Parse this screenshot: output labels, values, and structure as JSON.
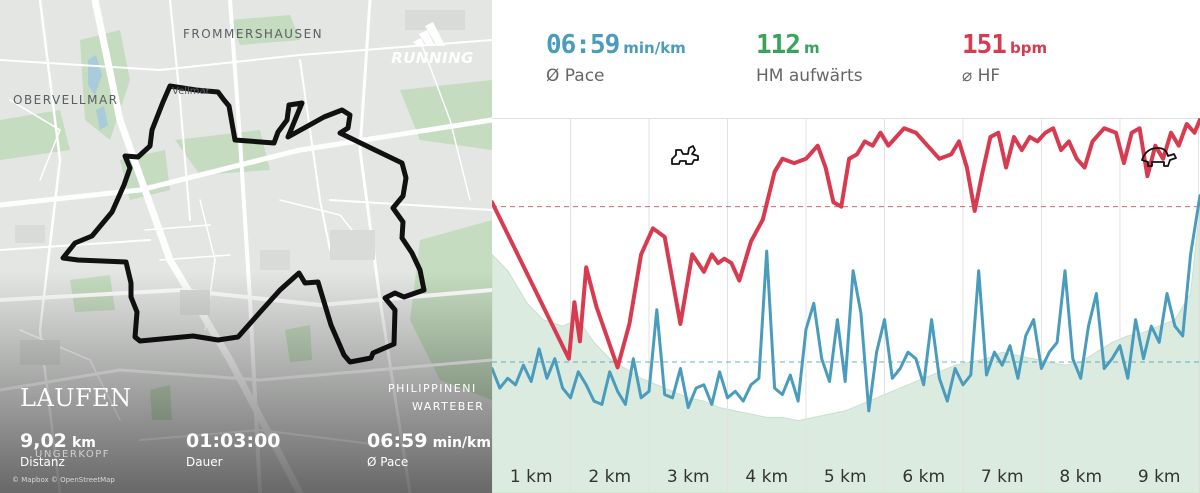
{
  "map": {
    "places": {
      "frommershausen": "FROMMERSHAUSEN",
      "obervellmar": "OBERVELLMAR",
      "vellmar": "Vellmar",
      "philippinen": "PHILIPPINENI",
      "warteberg": "WARTEBER",
      "ungerkopf": "UNGERKOPF"
    },
    "brand": {
      "icon": "adidas-logo-icon",
      "text": "RUNNING"
    },
    "activity_title": "LAUFEN",
    "stats": [
      {
        "value": "9,02",
        "unit": "km",
        "label": "Distanz"
      },
      {
        "value": "01:03:00",
        "unit": "",
        "label": "Dauer"
      },
      {
        "value": "06:59",
        "unit": "min/km",
        "label": "Ø Pace"
      }
    ],
    "attribution": "© Mapbox © OpenStreetMap",
    "route_color": "#111111"
  },
  "summary": [
    {
      "value": "06:59",
      "unit": "min/km",
      "label": "Ø Pace",
      "color": "#4a9cbd"
    },
    {
      "value": "112",
      "unit": "m",
      "label": "HM aufwärts",
      "color": "#3aa35a"
    },
    {
      "value": "151",
      "unit": "bpm",
      "label": "⌀ HF",
      "color": "#d83a4f"
    }
  ],
  "chart_data": {
    "type": "line",
    "x_unit": "km",
    "xlim": [
      0,
      9.02
    ],
    "x_tick_labels": [
      "1 km",
      "2 km",
      "3 km",
      "4 km",
      "5 km",
      "6 km",
      "7 km",
      "8 km",
      "9 km"
    ],
    "x_ticks": [
      1,
      2,
      3,
      4,
      5,
      6,
      7,
      8,
      9
    ],
    "icons": {
      "fast": "rabbit-icon",
      "slow": "turtle-icon"
    },
    "series": [
      {
        "key": "heart_rate",
        "color": "#d83a4f",
        "ylim": [
          95,
          170
        ],
        "average": 151,
        "x": [
          0,
          0.98,
          1.05,
          1.12,
          1.2,
          1.33,
          1.6,
          1.75,
          1.9,
          2.05,
          2.2,
          2.4,
          2.55,
          2.7,
          2.8,
          2.88,
          2.96,
          3.05,
          3.15,
          3.3,
          3.45,
          3.6,
          3.7,
          3.85,
          4.0,
          4.15,
          4.25,
          4.35,
          4.45,
          4.55,
          4.65,
          4.75,
          4.85,
          4.95,
          5.05,
          5.15,
          5.25,
          5.4,
          5.55,
          5.7,
          5.85,
          5.95,
          6.05,
          6.15,
          6.25,
          6.35,
          6.45,
          6.55,
          6.65,
          6.75,
          6.85,
          6.95,
          7.05,
          7.15,
          7.25,
          7.35,
          7.45,
          7.55,
          7.65,
          7.8,
          7.95,
          8.05,
          8.15,
          8.25,
          8.35,
          8.45,
          8.55,
          8.65,
          8.75,
          8.85,
          8.95,
          9.02
        ],
        "y": [
          152,
          116,
          129,
          120,
          137,
          128,
          114,
          124,
          140,
          146,
          144,
          124,
          140,
          136,
          140,
          138,
          139,
          138,
          134,
          143,
          148,
          159,
          162,
          161,
          162,
          165,
          160,
          152,
          151,
          162,
          163,
          166,
          165,
          168,
          165,
          167,
          169,
          168,
          165,
          162,
          163,
          166,
          160,
          150,
          159,
          167,
          168,
          160,
          167,
          164,
          167,
          166,
          168,
          169,
          164,
          166,
          162,
          160,
          166,
          169,
          168,
          161,
          168,
          169,
          158,
          165,
          162,
          168,
          165,
          170,
          168,
          171
        ]
      },
      {
        "key": "pace",
        "color": "#4a9cbd",
        "ylim": [
          0,
          100
        ],
        "average": 27,
        "x": [
          0,
          0.1,
          0.2,
          0.3,
          0.4,
          0.5,
          0.6,
          0.7,
          0.8,
          0.9,
          1.0,
          1.1,
          1.2,
          1.3,
          1.4,
          1.5,
          1.6,
          1.7,
          1.8,
          1.9,
          2.0,
          2.1,
          2.2,
          2.3,
          2.4,
          2.5,
          2.6,
          2.7,
          2.8,
          2.9,
          3.0,
          3.1,
          3.2,
          3.3,
          3.4,
          3.5,
          3.6,
          3.7,
          3.8,
          3.9,
          4.0,
          4.1,
          4.2,
          4.3,
          4.4,
          4.5,
          4.6,
          4.7,
          4.8,
          4.9,
          5.0,
          5.1,
          5.2,
          5.3,
          5.4,
          5.5,
          5.6,
          5.7,
          5.8,
          5.9,
          6.0,
          6.1,
          6.2,
          6.3,
          6.4,
          6.5,
          6.6,
          6.7,
          6.8,
          6.9,
          7.0,
          7.1,
          7.2,
          7.3,
          7.4,
          7.5,
          7.6,
          7.7,
          7.8,
          7.9,
          8.0,
          8.1,
          8.2,
          8.3,
          8.4,
          8.5,
          8.6,
          8.7,
          8.8,
          8.9,
          9.02
        ],
        "y": [
          25,
          19,
          22,
          20,
          26,
          21,
          31,
          22,
          28,
          19,
          16,
          24,
          20,
          15,
          14,
          24,
          18,
          14,
          28,
          16,
          18,
          43,
          17,
          16,
          25,
          13,
          19,
          20,
          14,
          24,
          16,
          18,
          15,
          20,
          22,
          61,
          19,
          17,
          23,
          15,
          37,
          45,
          28,
          21,
          40,
          21,
          55,
          42,
          12,
          30,
          40,
          22,
          25,
          30,
          28,
          20,
          40,
          22,
          15,
          25,
          20,
          23,
          55,
          23,
          30,
          26,
          32,
          22,
          35,
          40,
          25,
          30,
          33,
          55,
          28,
          22,
          38,
          48,
          25,
          28,
          32,
          22,
          40,
          28,
          38,
          33,
          48,
          38,
          35,
          60,
          78
        ]
      },
      {
        "key": "elevation",
        "color": "#dcebdf",
        "ylim": [
          0,
          100
        ],
        "x": [
          0,
          0.2,
          0.45,
          0.65,
          0.9,
          1.1,
          1.3,
          1.5,
          1.7,
          1.9,
          2.1,
          2.3,
          2.5,
          2.7,
          2.9,
          3.1,
          3.3,
          3.5,
          3.7,
          3.9,
          4.1,
          4.3,
          4.5,
          4.7,
          4.9,
          5.1,
          5.3,
          5.5,
          5.7,
          5.9,
          6.1,
          6.3,
          6.5,
          6.7,
          6.9,
          7.1,
          7.3,
          7.5,
          7.7,
          7.9,
          8.1,
          8.3,
          8.5,
          8.7,
          8.9,
          9.02
        ],
        "y": [
          60,
          55,
          45,
          40,
          38,
          40,
          33,
          28,
          25,
          22,
          20,
          18,
          16,
          15,
          13,
          12,
          11,
          10,
          10,
          9,
          10,
          11,
          12,
          14,
          16,
          18,
          20,
          22,
          24,
          26,
          27,
          28,
          30,
          29,
          28,
          27,
          26,
          27,
          30,
          33,
          35,
          36,
          38,
          40,
          48,
          75
        ]
      }
    ]
  }
}
